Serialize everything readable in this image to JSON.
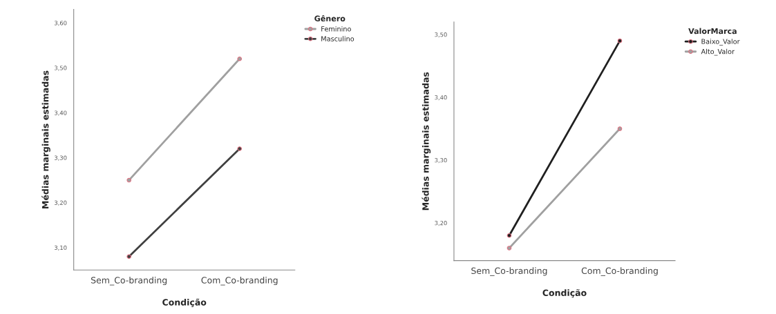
{
  "chart_data": [
    {
      "type": "line",
      "xlabel": "Condição",
      "ylabel": "Médias marginais estimadas",
      "legend_title": "Gênero",
      "categories": [
        "Sem_Co-branding",
        "Com_Co-branding"
      ],
      "series": [
        {
          "name": "Feminino",
          "color": "#a0a0a0",
          "values": [
            3.25,
            3.52
          ]
        },
        {
          "name": "Masculino",
          "color": "#404040",
          "values": [
            3.08,
            3.32
          ]
        }
      ],
      "ylim": [
        3.05,
        3.63
      ],
      "yticks": [
        {
          "value": 3.1,
          "label": "3,10"
        },
        {
          "value": 3.2,
          "label": "3,20"
        },
        {
          "value": 3.3,
          "label": "3,30"
        },
        {
          "value": 3.4,
          "label": "3,40"
        },
        {
          "value": 3.5,
          "label": "3,50"
        },
        {
          "value": 3.6,
          "label": "3,60"
        }
      ],
      "grid": false,
      "legend": "top right",
      "marker": "circle",
      "line_style": "solid"
    },
    {
      "type": "line",
      "xlabel": "Condição",
      "ylabel": "Médias marginais estimadas",
      "legend_title": "ValorMarca",
      "categories": [
        "Sem_Co-branding",
        "Com_Co-branding"
      ],
      "series": [
        {
          "name": "Baixo_Valor",
          "color": "#202020",
          "values": [
            3.18,
            3.49
          ]
        },
        {
          "name": "Alto_Valor",
          "color": "#a0a0a0",
          "values": [
            3.16,
            3.35
          ]
        }
      ],
      "ylim": [
        3.14,
        3.52
      ],
      "yticks": [
        {
          "value": 3.2,
          "label": "3,20"
        },
        {
          "value": 3.3,
          "label": "3,30"
        },
        {
          "value": 3.4,
          "label": "3,40"
        },
        {
          "value": 3.5,
          "label": "3,50"
        }
      ],
      "grid": false,
      "legend": "top right",
      "marker": "circle",
      "line_style": "solid"
    }
  ]
}
